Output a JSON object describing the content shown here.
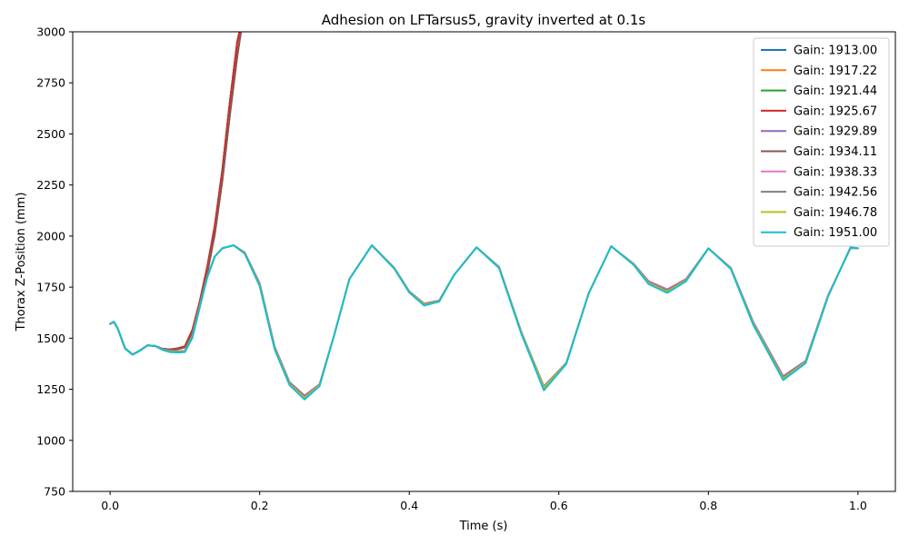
{
  "chart_data": {
    "type": "line",
    "title": "Adhesion on LFTarsus5, gravity inverted at 0.1s",
    "xlabel": "Time (s)",
    "ylabel": "Thorax Z-Position (mm)",
    "xlim": [
      -0.05,
      1.05
    ],
    "ylim": [
      750,
      3000
    ],
    "xticks": [
      0.0,
      0.2,
      0.4,
      0.6,
      0.8,
      1.0
    ],
    "xtick_labels": [
      "0.0",
      "0.2",
      "0.4",
      "0.6",
      "0.8",
      "1.0"
    ],
    "yticks": [
      750,
      1000,
      1250,
      1500,
      1750,
      2000,
      2250,
      2500,
      2750,
      3000
    ],
    "ytick_labels": [
      "750",
      "1000",
      "1250",
      "1500",
      "1750",
      "2000",
      "2250",
      "2500",
      "2750",
      "3000"
    ],
    "grid": false,
    "legend_position": "top-right",
    "series": [
      {
        "name": "Gain: 1913.00",
        "color": "#1f77b4",
        "x": [
          0.0,
          0.005,
          0.01,
          0.02,
          0.03,
          0.04,
          0.05,
          0.06,
          0.07,
          0.08,
          0.09,
          0.1,
          0.11,
          0.12,
          0.13,
          0.14,
          0.15,
          0.16,
          0.17,
          0.173
        ],
        "y": [
          1570,
          1580,
          1550,
          1450,
          1420,
          1440,
          1465,
          1462,
          1448,
          1445,
          1450,
          1460,
          1540,
          1680,
          1850,
          2050,
          2320,
          2650,
          2950,
          3000
        ]
      },
      {
        "name": "Gain: 1917.22",
        "color": "#ff7f0e",
        "x": [
          0.0,
          0.005,
          0.01,
          0.02,
          0.03,
          0.04,
          0.05,
          0.06,
          0.07,
          0.08,
          0.09,
          0.1,
          0.11,
          0.12,
          0.13,
          0.14,
          0.15,
          0.16,
          0.17,
          0.173
        ],
        "y": [
          1570,
          1580,
          1550,
          1450,
          1420,
          1440,
          1465,
          1462,
          1448,
          1445,
          1450,
          1460,
          1540,
          1680,
          1850,
          2050,
          2320,
          2650,
          2950,
          3000
        ]
      },
      {
        "name": "Gain: 1921.44",
        "color": "#2ca02c",
        "x": [
          0.0,
          0.005,
          0.01,
          0.02,
          0.03,
          0.04,
          0.05,
          0.06,
          0.07,
          0.08,
          0.09,
          0.1,
          0.11,
          0.12,
          0.13,
          0.14,
          0.15,
          0.16,
          0.17,
          0.173
        ],
        "y": [
          1570,
          1580,
          1550,
          1450,
          1420,
          1440,
          1465,
          1462,
          1448,
          1445,
          1450,
          1460,
          1540,
          1680,
          1850,
          2050,
          2320,
          2650,
          2950,
          3000
        ]
      },
      {
        "name": "Gain: 1925.67",
        "color": "#d62728",
        "x": [
          0.0,
          0.005,
          0.01,
          0.02,
          0.03,
          0.04,
          0.05,
          0.06,
          0.07,
          0.08,
          0.09,
          0.1,
          0.11,
          0.12,
          0.13,
          0.14,
          0.15,
          0.16,
          0.17,
          0.173
        ],
        "y": [
          1570,
          1580,
          1550,
          1450,
          1420,
          1440,
          1465,
          1462,
          1448,
          1445,
          1450,
          1460,
          1540,
          1680,
          1850,
          2050,
          2320,
          2650,
          2950,
          3000
        ]
      },
      {
        "name": "Gain: 1929.89",
        "color": "#9467bd",
        "x": [
          0.0,
          0.005,
          0.01,
          0.02,
          0.03,
          0.04,
          0.05,
          0.06,
          0.07,
          0.08,
          0.09,
          0.1,
          0.11,
          0.12,
          0.13,
          0.14,
          0.15,
          0.16,
          0.17,
          0.175
        ],
        "y": [
          1570,
          1580,
          1550,
          1450,
          1420,
          1440,
          1465,
          1462,
          1448,
          1443,
          1446,
          1455,
          1530,
          1660,
          1820,
          2010,
          2270,
          2590,
          2880,
          3000
        ]
      },
      {
        "name": "Gain: 1934.11",
        "color": "#8c564b",
        "x": [
          0.0,
          0.005,
          0.01,
          0.02,
          0.03,
          0.04,
          0.05,
          0.06,
          0.07,
          0.08,
          0.09,
          0.1,
          0.11,
          0.12,
          0.13,
          0.14,
          0.15,
          0.16,
          0.17,
          0.175
        ],
        "y": [
          1570,
          1580,
          1550,
          1450,
          1420,
          1440,
          1465,
          1462,
          1448,
          1443,
          1446,
          1455,
          1530,
          1660,
          1820,
          2010,
          2270,
          2590,
          2880,
          3000
        ]
      },
      {
        "name": "Gain: 1938.33",
        "color": "#e377c2",
        "x": [
          0.0,
          0.005,
          0.01,
          0.02,
          0.03,
          0.04,
          0.05,
          0.06,
          0.07,
          0.08,
          0.09,
          0.1,
          0.11,
          0.12,
          0.13,
          0.14,
          0.15,
          0.165,
          0.18,
          0.2,
          0.22,
          0.24,
          0.26,
          0.28,
          0.3,
          0.32,
          0.35,
          0.38,
          0.4,
          0.42,
          0.44,
          0.46,
          0.49,
          0.52,
          0.55,
          0.58,
          0.61,
          0.64,
          0.67,
          0.7,
          0.72,
          0.745,
          0.77,
          0.8,
          0.83,
          0.86,
          0.9,
          0.93,
          0.96,
          0.99,
          1.0
        ],
        "y": [
          1570,
          1580,
          1550,
          1450,
          1420,
          1440,
          1465,
          1462,
          1445,
          1438,
          1436,
          1438,
          1510,
          1660,
          1800,
          1900,
          1940,
          1955,
          1920,
          1770,
          1460,
          1285,
          1220,
          1275,
          1520,
          1790,
          1955,
          1845,
          1730,
          1670,
          1685,
          1810,
          1945,
          1850,
          1530,
          1265,
          1380,
          1720,
          1950,
          1865,
          1780,
          1740,
          1790,
          1940,
          1845,
          1580,
          1315,
          1390,
          1710,
          1940,
          1940
        ]
      },
      {
        "name": "Gain: 1942.56",
        "color": "#7f7f7f",
        "x": [
          0.0,
          0.005,
          0.01,
          0.02,
          0.03,
          0.04,
          0.05,
          0.06,
          0.07,
          0.08,
          0.09,
          0.1,
          0.11,
          0.12,
          0.13,
          0.14,
          0.15,
          0.165,
          0.18,
          0.2,
          0.22,
          0.24,
          0.26,
          0.28,
          0.3,
          0.32,
          0.35,
          0.38,
          0.4,
          0.42,
          0.44,
          0.46,
          0.49,
          0.52,
          0.55,
          0.58,
          0.61,
          0.64,
          0.67,
          0.7,
          0.72,
          0.745,
          0.77,
          0.8,
          0.83,
          0.86,
          0.9,
          0.93,
          0.96,
          0.99,
          1.0
        ],
        "y": [
          1570,
          1580,
          1550,
          1450,
          1420,
          1440,
          1465,
          1462,
          1445,
          1436,
          1434,
          1436,
          1508,
          1658,
          1800,
          1900,
          1940,
          1955,
          1918,
          1765,
          1455,
          1280,
          1215,
          1272,
          1520,
          1790,
          1955,
          1843,
          1728,
          1667,
          1683,
          1810,
          1945,
          1848,
          1528,
          1262,
          1378,
          1720,
          1950,
          1863,
          1775,
          1735,
          1786,
          1940,
          1843,
          1575,
          1310,
          1386,
          1708,
          1942,
          1940
        ]
      },
      {
        "name": "Gain: 1946.78",
        "color": "#bcbd22",
        "x": [
          0.0,
          0.005,
          0.01,
          0.02,
          0.03,
          0.04,
          0.05,
          0.06,
          0.07,
          0.08,
          0.09,
          0.1,
          0.11,
          0.12,
          0.13,
          0.14,
          0.15,
          0.165,
          0.18,
          0.2,
          0.22,
          0.24,
          0.26,
          0.28,
          0.3,
          0.32,
          0.35,
          0.38,
          0.4,
          0.42,
          0.44,
          0.46,
          0.49,
          0.52,
          0.55,
          0.58,
          0.61,
          0.64,
          0.67,
          0.7,
          0.72,
          0.745,
          0.77,
          0.8,
          0.83,
          0.86,
          0.9,
          0.93,
          0.96,
          0.99,
          1.0
        ],
        "y": [
          1570,
          1580,
          1550,
          1450,
          1420,
          1440,
          1465,
          1462,
          1444,
          1434,
          1432,
          1434,
          1505,
          1655,
          1800,
          1900,
          1940,
          1955,
          1916,
          1760,
          1450,
          1275,
          1208,
          1270,
          1520,
          1790,
          1955,
          1842,
          1726,
          1664,
          1681,
          1810,
          1945,
          1846,
          1525,
          1258,
          1376,
          1720,
          1950,
          1861,
          1770,
          1728,
          1782,
          1940,
          1841,
          1570,
          1302,
          1382,
          1706,
          1944,
          1940
        ]
      },
      {
        "name": "Gain: 1951.00",
        "color": "#17becf",
        "x": [
          0.0,
          0.005,
          0.01,
          0.02,
          0.03,
          0.04,
          0.05,
          0.06,
          0.07,
          0.08,
          0.09,
          0.1,
          0.11,
          0.12,
          0.13,
          0.14,
          0.15,
          0.165,
          0.18,
          0.2,
          0.22,
          0.24,
          0.26,
          0.28,
          0.3,
          0.32,
          0.35,
          0.38,
          0.4,
          0.42,
          0.44,
          0.46,
          0.49,
          0.52,
          0.55,
          0.58,
          0.61,
          0.64,
          0.67,
          0.7,
          0.72,
          0.745,
          0.77,
          0.8,
          0.83,
          0.86,
          0.9,
          0.93,
          0.96,
          0.99,
          1.0
        ],
        "y": [
          1570,
          1580,
          1550,
          1450,
          1420,
          1440,
          1465,
          1462,
          1443,
          1432,
          1430,
          1432,
          1502,
          1652,
          1800,
          1900,
          1940,
          1955,
          1914,
          1755,
          1445,
          1270,
          1200,
          1265,
          1520,
          1790,
          1955,
          1840,
          1724,
          1660,
          1679,
          1810,
          1945,
          1844,
          1520,
          1245,
          1374,
          1720,
          1950,
          1859,
          1765,
          1722,
          1778,
          1940,
          1839,
          1565,
          1295,
          1378,
          1704,
          1945,
          1940
        ]
      }
    ]
  }
}
